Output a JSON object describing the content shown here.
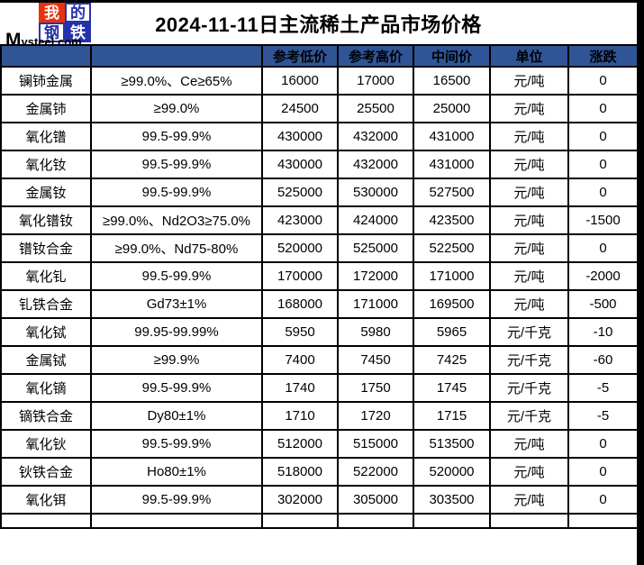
{
  "logo": {
    "chars": [
      "我",
      "的",
      "钢",
      "铁"
    ],
    "domain_text": "Mysteel.com",
    "red": "#e8320f",
    "blue": "#2433aa"
  },
  "header": {
    "title": "2024-11-11日主流稀土产品市场价格"
  },
  "table": {
    "header_bg": "#2f5597",
    "down_color": "#1ec161",
    "columns": [
      "",
      "",
      "参考低价",
      "参考高价",
      "中间价",
      "单位",
      "涨跌"
    ],
    "rows": [
      {
        "product": "镧铈金属",
        "spec": "≥99.0%、Ce≥65%",
        "low": "16000",
        "high": "17000",
        "mid": "16500",
        "unit": "元/吨",
        "change": "0"
      },
      {
        "product": "金属铈",
        "spec": "≥99.0%",
        "low": "24500",
        "high": "25500",
        "mid": "25000",
        "unit": "元/吨",
        "change": "0"
      },
      {
        "product": "氧化镨",
        "spec": "99.5-99.9%",
        "low": "430000",
        "high": "432000",
        "mid": "431000",
        "unit": "元/吨",
        "change": "0"
      },
      {
        "product": "氧化钕",
        "spec": "99.5-99.9%",
        "low": "430000",
        "high": "432000",
        "mid": "431000",
        "unit": "元/吨",
        "change": "0"
      },
      {
        "product": "金属钕",
        "spec": "99.5-99.9%",
        "low": "525000",
        "high": "530000",
        "mid": "527500",
        "unit": "元/吨",
        "change": "0"
      },
      {
        "product": "氧化镨钕",
        "spec": "≥99.0%、Nd2O3≥75.0%",
        "low": "423000",
        "high": "424000",
        "mid": "423500",
        "unit": "元/吨",
        "change": "-1500"
      },
      {
        "product": "镨钕合金",
        "spec": "≥99.0%、Nd75-80%",
        "low": "520000",
        "high": "525000",
        "mid": "522500",
        "unit": "元/吨",
        "change": "0"
      },
      {
        "product": "氧化钆",
        "spec": "99.5-99.9%",
        "low": "170000",
        "high": "172000",
        "mid": "171000",
        "unit": "元/吨",
        "change": "-2000"
      },
      {
        "product": "钆铁合金",
        "spec": "Gd73±1%",
        "low": "168000",
        "high": "171000",
        "mid": "169500",
        "unit": "元/吨",
        "change": "-500"
      },
      {
        "product": "氧化铽",
        "spec": "99.95-99.99%",
        "low": "5950",
        "high": "5980",
        "mid": "5965",
        "unit": "元/千克",
        "change": "-10"
      },
      {
        "product": "金属铽",
        "spec": "≥99.9%",
        "low": "7400",
        "high": "7450",
        "mid": "7425",
        "unit": "元/千克",
        "change": "-60"
      },
      {
        "product": "氧化镝",
        "spec": "99.5-99.9%",
        "low": "1740",
        "high": "1750",
        "mid": "1745",
        "unit": "元/千克",
        "change": "-5"
      },
      {
        "product": "镝铁合金",
        "spec": "Dy80±1%",
        "low": "1710",
        "high": "1720",
        "mid": "1715",
        "unit": "元/千克",
        "change": "-5"
      },
      {
        "product": "氧化钬",
        "spec": "99.5-99.9%",
        "low": "512000",
        "high": "515000",
        "mid": "513500",
        "unit": "元/吨",
        "change": "0"
      },
      {
        "product": "钬铁合金",
        "spec": "Ho80±1%",
        "low": "518000",
        "high": "522000",
        "mid": "520000",
        "unit": "元/吨",
        "change": "0"
      },
      {
        "product": "氧化铒",
        "spec": "99.5-99.9%",
        "low": "302000",
        "high": "305000",
        "mid": "303500",
        "unit": "元/吨",
        "change": "0"
      }
    ]
  }
}
